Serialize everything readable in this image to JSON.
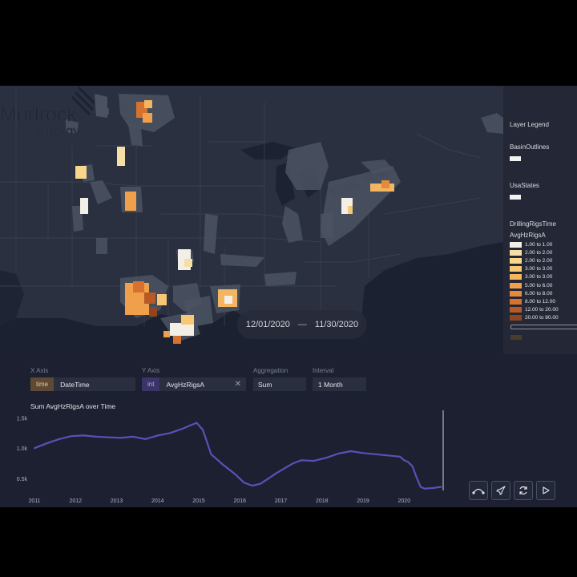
{
  "time_range": {
    "start": "12/01/2020",
    "separator": "—",
    "end": "11/30/2020"
  },
  "logo": {
    "word1": "Mudrock",
    "word2": "Energy"
  },
  "legend": {
    "title": "Layer Legend",
    "layers": [
      {
        "name": "BasinOutlines"
      },
      {
        "name": "UsaStates"
      },
      {
        "name": "DrillingRigsTime",
        "field": "AvgHzRigsA"
      }
    ],
    "bins": [
      {
        "label": "1.00 to 1.00",
        "color": "#f3efe6"
      },
      {
        "label": "2.00 to 2.00",
        "color": "#f6dfa6"
      },
      {
        "label": "2.00 to 2.00",
        "color": "#f8d68c"
      },
      {
        "label": "3.00 to 3.00",
        "color": "#f7c774"
      },
      {
        "label": "3.00 to 3.00",
        "color": "#f4b560"
      },
      {
        "label": "5.00 to 6.00",
        "color": "#f0a04a"
      },
      {
        "label": "6.00 to 8.00",
        "color": "#e58a3a"
      },
      {
        "label": "8.00 to 12.00",
        "color": "#d5722f"
      },
      {
        "label": "12.00 to 20.00",
        "color": "#b75a26"
      },
      {
        "label": "20.00 to 80.00",
        "color": "#8f451f"
      }
    ]
  },
  "config": {
    "x_axis": {
      "label": "X Axis",
      "type": "time",
      "field": "DateTime"
    },
    "y_axis": {
      "label": "Y Axis",
      "type": "int",
      "field": "AvgHzRigsA",
      "clear": "✕"
    },
    "aggregation": {
      "label": "Aggregation",
      "value": "Sum"
    },
    "interval": {
      "label": "Interval",
      "value": "1 Month"
    }
  },
  "chart_data": {
    "type": "line",
    "title": "Sum AvgHzRigsA over Time",
    "xlabel": "",
    "ylabel": "",
    "x_ticks": [
      "2011",
      "2012",
      "2013",
      "2014",
      "2015",
      "2016",
      "2017",
      "2018",
      "2019",
      "2020"
    ],
    "y_ticks": [
      "1.5k",
      "1.0k",
      "0.5k"
    ],
    "y_tick_values": [
      1500,
      1000,
      500
    ],
    "ylim": [
      300,
      1600
    ],
    "xlim": [
      2011.0,
      2020.95
    ],
    "series": [
      {
        "name": "Sum AvgHzRigsA",
        "color": "#5b50b8",
        "x": [
          2011.0,
          2011.3,
          2011.6,
          2011.9,
          2012.2,
          2012.5,
          2012.8,
          2013.1,
          2013.4,
          2013.7,
          2014.0,
          2014.3,
          2014.6,
          2014.8,
          2014.95,
          2015.1,
          2015.3,
          2015.6,
          2015.9,
          2016.1,
          2016.3,
          2016.5,
          2016.7,
          2016.9,
          2017.1,
          2017.3,
          2017.5,
          2017.8,
          2018.1,
          2018.4,
          2018.7,
          2019.0,
          2019.3,
          2019.6,
          2019.9,
          2020.0,
          2020.1,
          2020.2,
          2020.3,
          2020.4,
          2020.5,
          2020.7,
          2020.9
        ],
        "y": [
          1000,
          1080,
          1150,
          1200,
          1210,
          1190,
          1180,
          1170,
          1190,
          1150,
          1210,
          1250,
          1320,
          1380,
          1420,
          1300,
          900,
          720,
          560,
          430,
          380,
          410,
          500,
          590,
          670,
          750,
          800,
          790,
          840,
          910,
          950,
          920,
          900,
          880,
          860,
          800,
          770,
          700,
          520,
          360,
          330,
          340,
          360
        ]
      }
    ],
    "cursor_x": 2020.95
  },
  "controls": [
    {
      "name": "path-icon"
    },
    {
      "name": "rocket-icon"
    },
    {
      "name": "refresh-icon"
    },
    {
      "name": "play-icon"
    }
  ]
}
